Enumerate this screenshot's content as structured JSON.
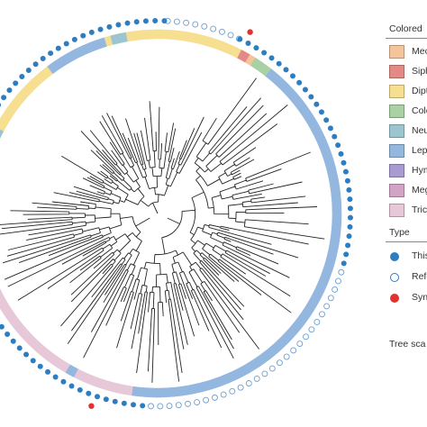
{
  "legend": {
    "colored_title": "Colored",
    "order_items": [
      {
        "label": "Meco",
        "color": "#f4c49a"
      },
      {
        "label": "Siph",
        "color": "#e48a86"
      },
      {
        "label": "Dipt",
        "color": "#f7df91"
      },
      {
        "label": "Cole",
        "color": "#a9d1a3"
      },
      {
        "label": "Neu",
        "color": "#9cc6cf"
      },
      {
        "label": "Lepo",
        "color": "#93b7df"
      },
      {
        "label": "Hym",
        "color": "#a99ad1"
      },
      {
        "label": "Meg",
        "color": "#d2a3c4"
      },
      {
        "label": "Trica",
        "color": "#e7c8d8"
      }
    ],
    "type_title": "Type",
    "type_items": [
      {
        "label": "This s",
        "kind": "filled",
        "color": "#2d7dc3"
      },
      {
        "label": "Refere",
        "kind": "open",
        "color": "#2d7dc3"
      },
      {
        "label": "Synthe",
        "kind": "filled",
        "color": "#e0322e"
      }
    ],
    "tree_scale": "Tree sca"
  },
  "diagram": {
    "ring_segments": [
      {
        "order": "Dipt",
        "color": "#f7df91",
        "from_deg": 70,
        "to_deg": 100
      },
      {
        "order": "Neu",
        "color": "#9cc6cf",
        "from_deg": 100,
        "to_deg": 105
      },
      {
        "order": "Dipt",
        "color": "#f7df91",
        "from_deg": 105,
        "to_deg": 107
      },
      {
        "order": "Lepo",
        "color": "#93b7df",
        "from_deg": 107,
        "to_deg": 127
      },
      {
        "order": "Dipt",
        "color": "#f7df91",
        "from_deg": 127,
        "to_deg": 152
      },
      {
        "order": "Neu",
        "color": "#9cc6cf",
        "from_deg": 152,
        "to_deg": 156
      },
      {
        "order": "Dipt",
        "color": "#f7df91",
        "from_deg": 156,
        "to_deg": 162
      },
      {
        "order": "Cole",
        "color": "#a9d1a3",
        "from_deg": 162,
        "to_deg": 176
      },
      {
        "order": "Neu",
        "color": "#9cc6cf",
        "from_deg": 176,
        "to_deg": 180
      },
      {
        "order": "Meg",
        "color": "#d2a3c4",
        "from_deg": 180,
        "to_deg": 190
      },
      {
        "order": "Cole",
        "color": "#a9d1a3",
        "from_deg": 190,
        "to_deg": 194
      },
      {
        "order": "Neu",
        "color": "#9cc6cf",
        "from_deg": 194,
        "to_deg": 197
      },
      {
        "order": "Trica",
        "color": "#e7c8d8",
        "from_deg": 197,
        "to_deg": 240
      },
      {
        "order": "Lepo",
        "color": "#93b7df",
        "from_deg": 240,
        "to_deg": 243
      },
      {
        "order": "Trica",
        "color": "#e7c8d8",
        "from_deg": 243,
        "to_deg": 262
      },
      {
        "order": "Lepo",
        "color": "#93b7df",
        "from_deg": 262,
        "to_deg": 412
      },
      {
        "order": "Cole",
        "color": "#a9d1a3",
        "from_deg": 412,
        "to_deg": 418
      },
      {
        "order": "Meco",
        "color": "#f4c49a",
        "from_deg": 418,
        "to_deg": 420
      },
      {
        "order": "Siph",
        "color": "#e48a86",
        "from_deg": 420,
        "to_deg": 423
      },
      {
        "order": "Dipt",
        "color": "#f7df91",
        "from_deg": 423,
        "to_deg": 430
      }
    ],
    "outer_dots": [
      {
        "from_deg": 65,
        "to_deg": 88,
        "kind": "open"
      },
      {
        "from_deg": 88,
        "to_deg": 180,
        "kind": "filled"
      },
      {
        "from_deg": 180,
        "to_deg": 205,
        "kind": "open"
      },
      {
        "from_deg": 205,
        "to_deg": 268,
        "kind": "filled"
      },
      {
        "from_deg": 268,
        "to_deg": 345,
        "kind": "open"
      },
      {
        "from_deg": 345,
        "to_deg": 425,
        "kind": "filled"
      }
    ],
    "synthetic_marks": [
      {
        "angle_deg": 63
      },
      {
        "angle_deg": 251
      }
    ]
  }
}
